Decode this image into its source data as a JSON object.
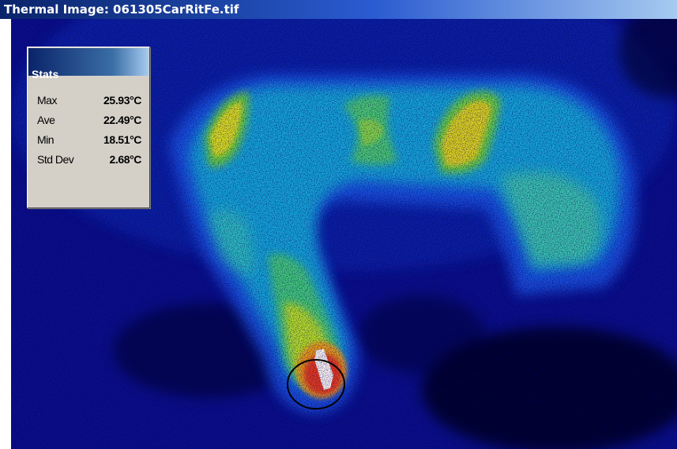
{
  "window": {
    "title": "Thermal Image: 061305CarRitFe.tif"
  },
  "stats": {
    "header": "Stats",
    "rows": [
      {
        "label": "Max",
        "value": "25.93°C"
      },
      {
        "label": "Ave",
        "value": "22.49°C"
      },
      {
        "label": "Min",
        "value": "18.51°C"
      },
      {
        "label": "Std Dev",
        "value": "2.68°C"
      }
    ]
  },
  "colors": {
    "titlebar": "#0a246a",
    "thermal_background": "#0a0a78",
    "panel": "#d4d0c8"
  }
}
